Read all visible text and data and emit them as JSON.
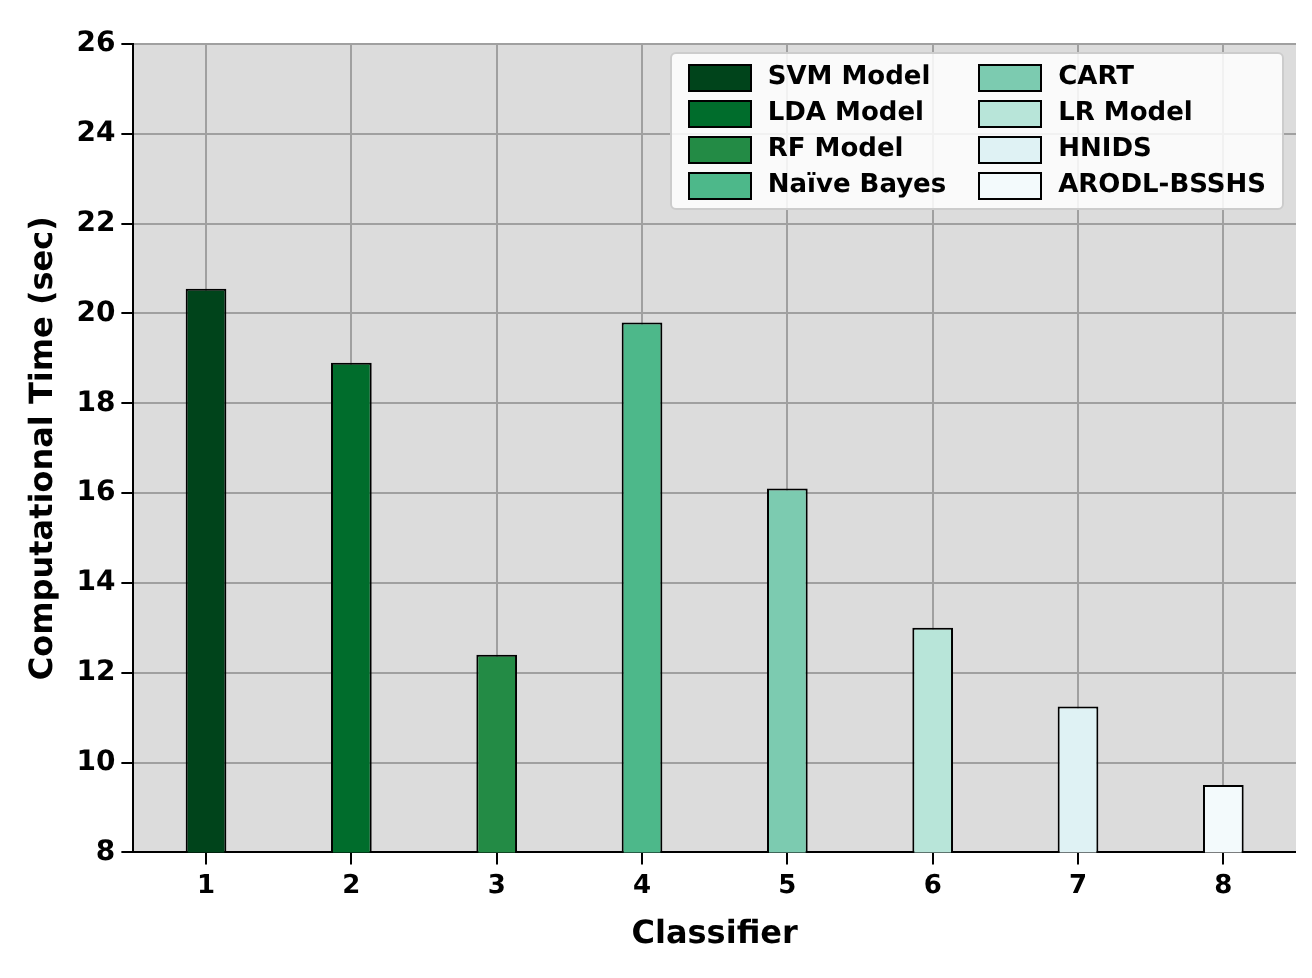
{
  "chart_data": {
    "type": "bar",
    "xlabel": "Classifier",
    "ylabel": "Computational Time (sec)",
    "categories": [
      "1",
      "2",
      "3",
      "4",
      "5",
      "6",
      "7",
      "8"
    ],
    "series": [
      {
        "name": "SVM Model",
        "color": "#00441b",
        "values": [
          20.55,
          null,
          null,
          null,
          null,
          null,
          null,
          null
        ]
      },
      {
        "name": "LDA Model",
        "color": "#006d2c",
        "values": [
          null,
          18.9,
          null,
          null,
          null,
          null,
          null,
          null
        ]
      },
      {
        "name": "RF Model",
        "color": "#238b45",
        "values": [
          null,
          null,
          12.4,
          null,
          null,
          null,
          null,
          null
        ]
      },
      {
        "name": "Naïve Bayes",
        "color": "#4db88a",
        "values": [
          null,
          null,
          null,
          19.8,
          null,
          null,
          null,
          null
        ]
      },
      {
        "name": "CART",
        "color": "#7ccbb0",
        "values": [
          null,
          null,
          null,
          null,
          16.1,
          null,
          null,
          null
        ]
      },
      {
        "name": "LR Model",
        "color": "#b8e5d9",
        "values": [
          null,
          null,
          null,
          null,
          null,
          13.0,
          null,
          null
        ]
      },
      {
        "name": "HNIDS",
        "color": "#dff2f4",
        "values": [
          null,
          null,
          null,
          null,
          null,
          null,
          11.25,
          null
        ]
      },
      {
        "name": "ARODL-BSSHS",
        "color": "#f3fafc",
        "values": [
          null,
          null,
          null,
          null,
          null,
          null,
          null,
          9.5
        ]
      }
    ],
    "ylim": [
      8,
      26
    ],
    "yticks": [
      8,
      10,
      12,
      14,
      16,
      18,
      20,
      22,
      24,
      26
    ],
    "grid": true,
    "legend": "top right"
  }
}
